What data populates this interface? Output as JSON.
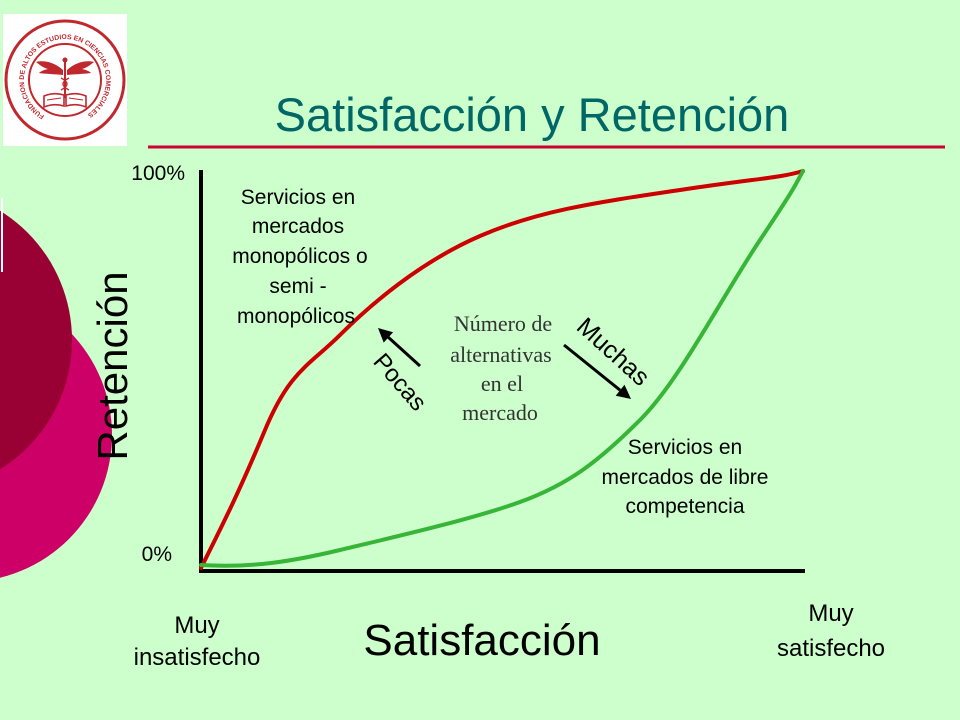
{
  "logo": {
    "text": "FUNDACION DE ALTOS ESTUDIOS EN CIENCIAS COMERCIALES"
  },
  "title": "Satisfacción y Retención",
  "axes": {
    "y": {
      "label": "Retención",
      "max_label": "100%",
      "min_label": "0%"
    },
    "x": {
      "label": "Satisfacción",
      "min_label": [
        "Muy",
        "insatisfecho"
      ],
      "max_label": [
        "Muy",
        "satisfecho"
      ]
    }
  },
  "annotations": {
    "monopoly_markets": [
      "Servicios en",
      "mercados",
      "monopólicos o",
      "semi -",
      "monopólicos"
    ],
    "free_markets": [
      "Servicios en",
      "mercados de libre",
      "competencia"
    ],
    "alternatives": [
      "Número de",
      "alternativas",
      "en el",
      "mercado"
    ],
    "few_alternatives": "Pocas",
    "many_alternatives": "Muchas"
  },
  "colors": {
    "background": "#ccffcc",
    "title": "#006666",
    "rule": "#cc0033",
    "monopoly_curve": "#cc0000",
    "free_market_curve": "#36b536",
    "accent_dark": "#990033",
    "accent_pink": "#cc0066",
    "logo": "#c0282d"
  }
}
